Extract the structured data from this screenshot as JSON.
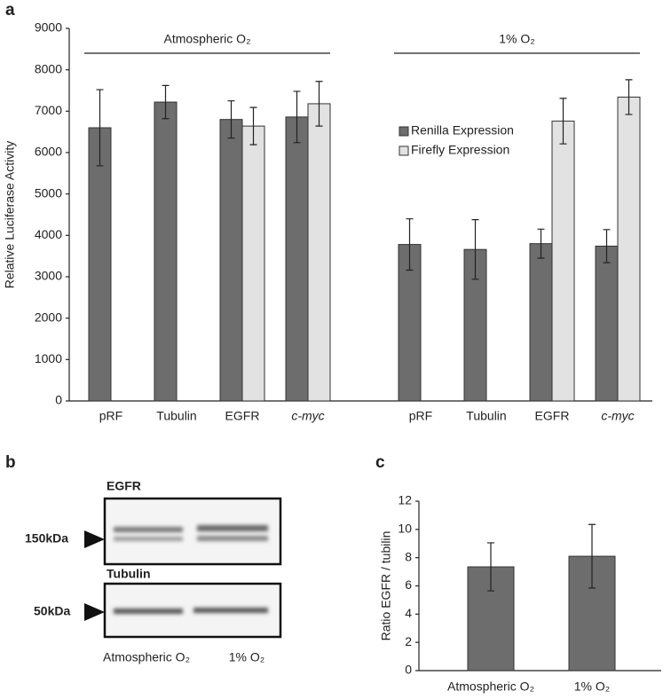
{
  "chart_data": [
    {
      "type": "bar",
      "label": "a",
      "ylabel": "Relative Luciferase Activity",
      "groups": [
        {
          "name": "Atmospheric O₂",
          "categories": [
            "pRF",
            "Tubulin",
            "EGFR",
            "c-myc"
          ]
        },
        {
          "name": "1% O₂",
          "categories": [
            "pRF",
            "Tubulin",
            "EGFR",
            "c-myc"
          ]
        }
      ],
      "series": [
        {
          "name": "Renilla Expression",
          "color": "#6d6d6d",
          "values": [
            6600,
            7220,
            6800,
            6860,
            3780,
            3660,
            3800,
            3740
          ],
          "errors": [
            920,
            400,
            450,
            620,
            620,
            720,
            350,
            400
          ]
        },
        {
          "name": "Firefly Expression",
          "color": "#e2e2e2",
          "values": [
            0,
            0,
            6640,
            7180,
            0,
            0,
            6760,
            7340
          ],
          "errors": [
            null,
            null,
            450,
            540,
            null,
            null,
            550,
            420
          ]
        }
      ],
      "ylim": [
        0,
        9000
      ],
      "yticks": [
        0,
        1000,
        2000,
        3000,
        4000,
        5000,
        6000,
        7000,
        8000,
        9000
      ],
      "legend": "upper right"
    },
    {
      "type": "bar",
      "label": "c",
      "ylabel": "Ratio EGFR / tubilin",
      "categories": [
        "Atmospheric O₂",
        "1% O₂"
      ],
      "values": [
        7.35,
        8.1
      ],
      "errors": [
        1.7,
        2.25
      ],
      "color": "#6d6d6d",
      "ylim": [
        0,
        12
      ],
      "yticks": [
        0,
        2,
        4,
        6,
        8,
        10,
        12
      ]
    }
  ],
  "blot": {
    "label": "b",
    "top_title": "EGFR",
    "top_marker": "150kDa",
    "bottom_title": "Tubulin",
    "bottom_marker": "50kDa",
    "lanes": [
      "Atmospheric O₂",
      "1% O₂"
    ]
  }
}
